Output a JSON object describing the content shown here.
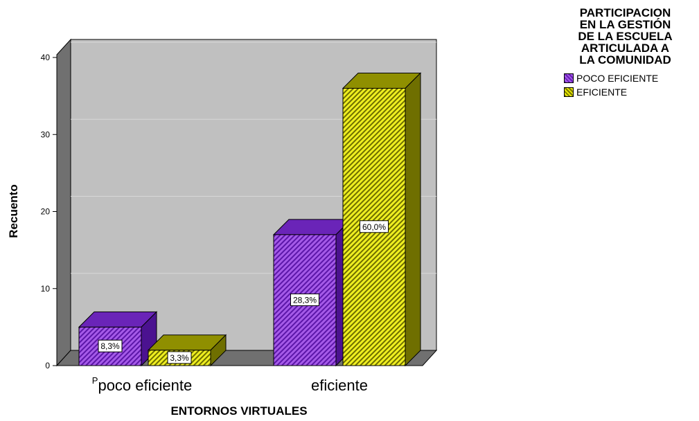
{
  "chart_data": {
    "type": "bar",
    "title": "",
    "xlabel": "ENTORNOS VIRTUALES",
    "ylabel": "Recuento",
    "ylim": [
      0,
      40
    ],
    "yticks": [
      0,
      10,
      20,
      30,
      40
    ],
    "grid": true,
    "categories": [
      "poco eficiente",
      "eficiente"
    ],
    "category_prefix": "P",
    "series": [
      {
        "name": "POCO EFICIENTE",
        "color": "#8a3fd6",
        "values": [
          5,
          17
        ],
        "labels": [
          "8,3%",
          "28,3%"
        ]
      },
      {
        "name": "EFICIENTE",
        "color": "#e0e000",
        "values": [
          2,
          36
        ],
        "labels": [
          "3,3%",
          "60,0%"
        ]
      }
    ],
    "legend": {
      "title": "PARTICIPACION EN LA GESTIÓN DE LA ESCUELA ARTICULADA A LA COMUNIDAD",
      "title_lines": [
        "PARTICIPACION",
        "EN LA GESTIÓN",
        "DE LA ESCUELA",
        "ARTICULADA A",
        "LA COMUNIDAD"
      ],
      "position": "top-right"
    }
  }
}
